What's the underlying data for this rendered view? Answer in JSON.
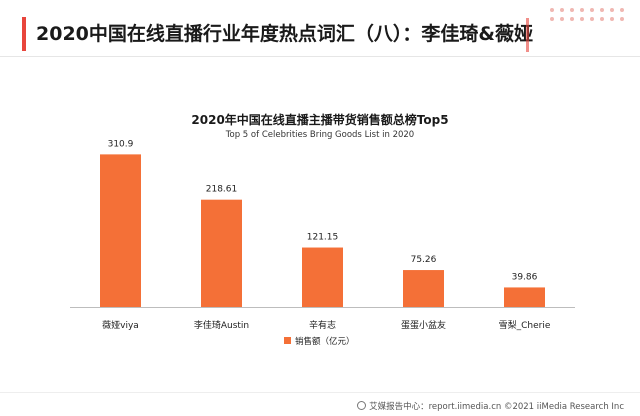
{
  "header": {
    "title": "2020中国在线直播行业年度热点词汇（八）：李佳琦&薇娅"
  },
  "chart_data": {
    "type": "bar",
    "title": "2020年中国在线直播主播带货销售额总榜Top5",
    "subtitle": "Top 5 of Celebrities Bring Goods List in 2020",
    "categories": [
      "薇娅viya",
      "李佳琦Austin",
      "辛有志",
      "蛋蛋小盆友",
      "雪梨_Cherie"
    ],
    "series": [
      {
        "name": "销售额（亿元）",
        "values": [
          310.9,
          218.61,
          121.15,
          75.26,
          39.86
        ]
      }
    ],
    "data_labels": [
      "310.9",
      "218.61",
      "121.15",
      "75.26",
      "39.86"
    ],
    "ylim": [
      0,
      330
    ],
    "legend_position": "bottom",
    "grid": false,
    "bar_color": "#f47037"
  },
  "footer": {
    "source": "艾媒报告中心：report.iimedia.cn  ©2021  iiMedia Research  Inc"
  }
}
